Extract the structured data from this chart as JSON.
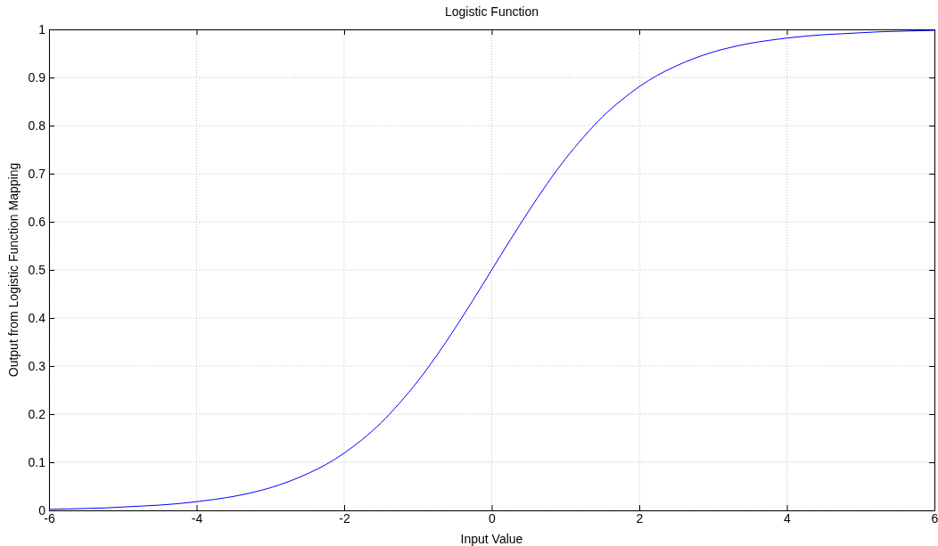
{
  "chart_data": {
    "type": "line",
    "title": "Logistic Function",
    "xlabel": "Input Value",
    "ylabel": "Output from Logistic Function Mapping",
    "x": [
      -6,
      -5.75,
      -5.5,
      -5.25,
      -5,
      -4.75,
      -4.5,
      -4.25,
      -4,
      -3.75,
      -3.5,
      -3.25,
      -3,
      -2.75,
      -2.5,
      -2.25,
      -2,
      -1.75,
      -1.5,
      -1.25,
      -1,
      -0.75,
      -0.5,
      -0.25,
      0,
      0.25,
      0.5,
      0.75,
      1,
      1.25,
      1.5,
      1.75,
      2,
      2.25,
      2.5,
      2.75,
      3,
      3.25,
      3.5,
      3.75,
      4,
      4.25,
      4.5,
      4.75,
      5,
      5.25,
      5.5,
      5.75,
      6
    ],
    "series": [
      {
        "color": "#0000ff",
        "values": [
          0.002,
          0.003,
          0.004,
          0.005,
          0.007,
          0.009,
          0.011,
          0.014,
          0.018,
          0.023,
          0.029,
          0.037,
          0.047,
          0.06,
          0.076,
          0.095,
          0.119,
          0.148,
          0.182,
          0.223,
          0.269,
          0.321,
          0.378,
          0.438,
          0.5,
          0.562,
          0.622,
          0.679,
          0.731,
          0.777,
          0.818,
          0.852,
          0.881,
          0.905,
          0.924,
          0.94,
          0.953,
          0.963,
          0.971,
          0.977,
          0.982,
          0.986,
          0.989,
          0.991,
          0.993,
          0.995,
          0.996,
          0.997,
          0.998
        ]
      }
    ],
    "xlim": [
      -6,
      6
    ],
    "ylim": [
      0,
      1
    ],
    "xticks": [
      -6,
      -4,
      -2,
      0,
      2,
      4,
      6
    ],
    "yticks": [
      0,
      0.1,
      0.2,
      0.3,
      0.4,
      0.5,
      0.6,
      0.7,
      0.8,
      0.9,
      1
    ],
    "grid": true,
    "marker": "none",
    "line_style": "solid"
  }
}
